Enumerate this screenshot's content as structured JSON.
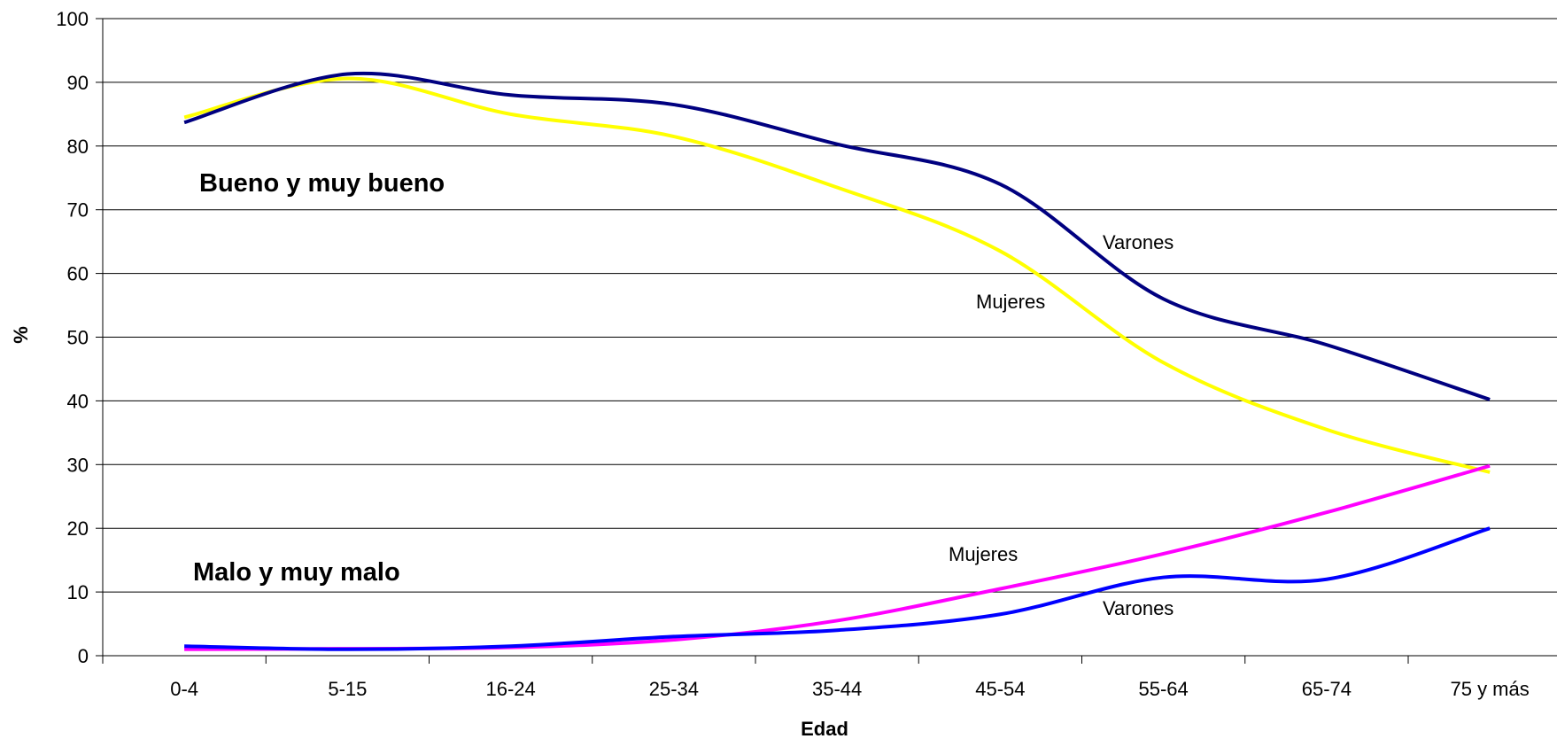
{
  "chart_data": {
    "type": "line",
    "title": "",
    "xlabel": "Edad",
    "ylabel": "%",
    "ylim": [
      0,
      100
    ],
    "yticks": [
      0,
      10,
      20,
      30,
      40,
      50,
      60,
      70,
      80,
      90,
      100
    ],
    "grid": "horizontal",
    "legend": "none",
    "categories": [
      "0-4",
      "5-15",
      "16-24",
      "25-34",
      "35-44",
      "45-54",
      "55-64",
      "65-74",
      "75 y más"
    ],
    "series": [
      {
        "name": "Varones",
        "group": "Bueno y muy bueno",
        "color": "#000080",
        "values": [
          83.7,
          91.3,
          88.0,
          86.5,
          80.3,
          74.0,
          56.0,
          48.8,
          40.2
        ]
      },
      {
        "name": "Mujeres",
        "group": "Bueno y muy bueno",
        "color": "#ffff00",
        "values": [
          84.5,
          90.6,
          85.0,
          81.5,
          73.5,
          63.5,
          46.0,
          35.5,
          28.8
        ]
      },
      {
        "name": "Mujeres",
        "group": "Malo y muy malo",
        "color": "#ff00ff",
        "values": [
          1.0,
          1.1,
          1.3,
          2.5,
          5.5,
          10.5,
          16.0,
          22.5,
          29.8
        ]
      },
      {
        "name": "Varones",
        "group": "Malo y muy malo",
        "color": "#0000ff",
        "values": [
          1.5,
          1.0,
          1.5,
          3.0,
          4.0,
          6.5,
          12.3,
          12.0,
          20.0
        ]
      }
    ],
    "annotations": [
      {
        "text": "Bueno y muy bueno",
        "style": "bold"
      },
      {
        "text": "Malo y muy malo",
        "style": "bold"
      },
      {
        "text": "Varones",
        "style": "normal"
      },
      {
        "text": "Mujeres",
        "style": "normal"
      },
      {
        "text": "Mujeres",
        "style": "normal"
      },
      {
        "text": "Varones",
        "style": "normal"
      }
    ]
  }
}
